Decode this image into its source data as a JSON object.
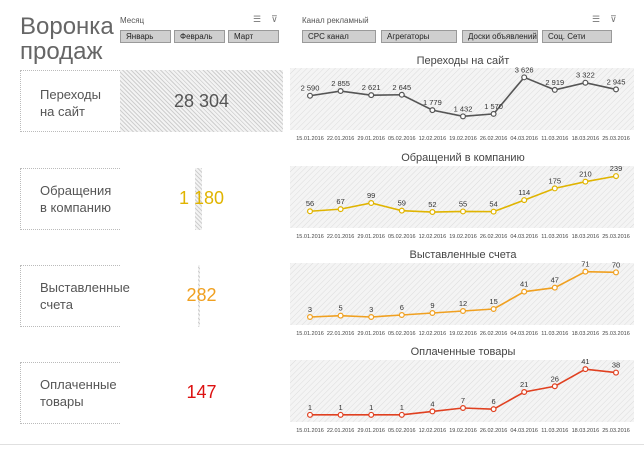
{
  "title": "Воронка продаж",
  "month_slicer": {
    "label": "Месяц",
    "buttons": [
      "Январь",
      "Февраль",
      "Март"
    ]
  },
  "channel_slicer": {
    "label": "Канал рекламный",
    "buttons": [
      "CPC канал",
      "Агрегаторы",
      "Доски объявлений",
      "Соц. Сети"
    ]
  },
  "kpis": [
    {
      "label_line1": "Переходы",
      "label_line2": "на сайт",
      "value": "28 304",
      "color": "#555555"
    },
    {
      "label_line1": "Обращения",
      "label_line2": "в компанию",
      "value": "1 180",
      "color": "#e0b400"
    },
    {
      "label_line1": "Выставленные",
      "label_line2": "счета",
      "value": "282",
      "color": "#f0a020"
    },
    {
      "label_line1": "Оплаченные",
      "label_line2": "товары",
      "value": "147",
      "color": "#dd1111"
    }
  ],
  "chart_data": [
    {
      "type": "line",
      "title": "Переходы на сайт",
      "x": [
        "15.01.2016",
        "22.01.2016",
        "29.01.2016",
        "05.02.2016",
        "12.02.2016",
        "19.02.2016",
        "26.02.2016",
        "04.03.2016",
        "11.03.2016",
        "18.03.2016",
        "25.03.2016"
      ],
      "values": [
        2590,
        2855,
        2621,
        2645,
        1779,
        1432,
        1570,
        3626,
        2919,
        3322,
        2945
      ],
      "labels": [
        "2 590",
        "2 855",
        "2 621",
        "2 645",
        "1 779",
        "1 432",
        "1 570",
        "3 626",
        "2 919",
        "3 322",
        "2 945"
      ],
      "ylim": [
        1000,
        3700
      ],
      "line_color": "#555555",
      "grid": false
    },
    {
      "type": "line",
      "title": "Обращений в компанию",
      "x": [
        "15.01.2016",
        "22.01.2016",
        "29.01.2016",
        "05.02.2016",
        "12.02.2016",
        "19.02.2016",
        "26.02.2016",
        "04.03.2016",
        "11.03.2016",
        "18.03.2016",
        "25.03.2016"
      ],
      "values": [
        56,
        67,
        99,
        59,
        52,
        55,
        54,
        114,
        175,
        210,
        239
      ],
      "labels": [
        "56",
        "67",
        "99",
        "59",
        "52",
        "55",
        "54",
        "114",
        "175",
        "210",
        "239"
      ],
      "ylim": [
        0,
        250
      ],
      "line_color": "#e0b400",
      "grid": false
    },
    {
      "type": "line",
      "title": "Выставленные счета",
      "x": [
        "15.01.2016",
        "22.01.2016",
        "29.01.2016",
        "05.02.2016",
        "12.02.2016",
        "19.02.2016",
        "26.02.2016",
        "04.03.2016",
        "11.03.2016",
        "18.03.2016",
        "25.03.2016"
      ],
      "values": [
        3,
        5,
        3,
        6,
        9,
        12,
        15,
        41,
        47,
        71,
        70
      ],
      "labels": [
        "3",
        "5",
        "3",
        "6",
        "9",
        "12",
        "15",
        "41",
        "47",
        "71",
        "70"
      ],
      "ylim": [
        0,
        72
      ],
      "line_color": "#f0a020",
      "grid": false
    },
    {
      "type": "line",
      "title": "Оплаченные товары",
      "x": [
        "15.01.2016",
        "22.01.2016",
        "29.01.2016",
        "05.02.2016",
        "12.02.2016",
        "19.02.2016",
        "26.02.2016",
        "04.03.2016",
        "11.03.2016",
        "18.03.2016",
        "25.03.2016"
      ],
      "values": [
        1,
        1,
        1,
        1,
        4,
        7,
        6,
        21,
        26,
        41,
        38
      ],
      "labels": [
        "1",
        "1",
        "1",
        "1",
        "4",
        "7",
        "6",
        "21",
        "26",
        "41",
        "38"
      ],
      "ylim": [
        0,
        42
      ],
      "line_color": "#e04020",
      "grid": false
    }
  ]
}
